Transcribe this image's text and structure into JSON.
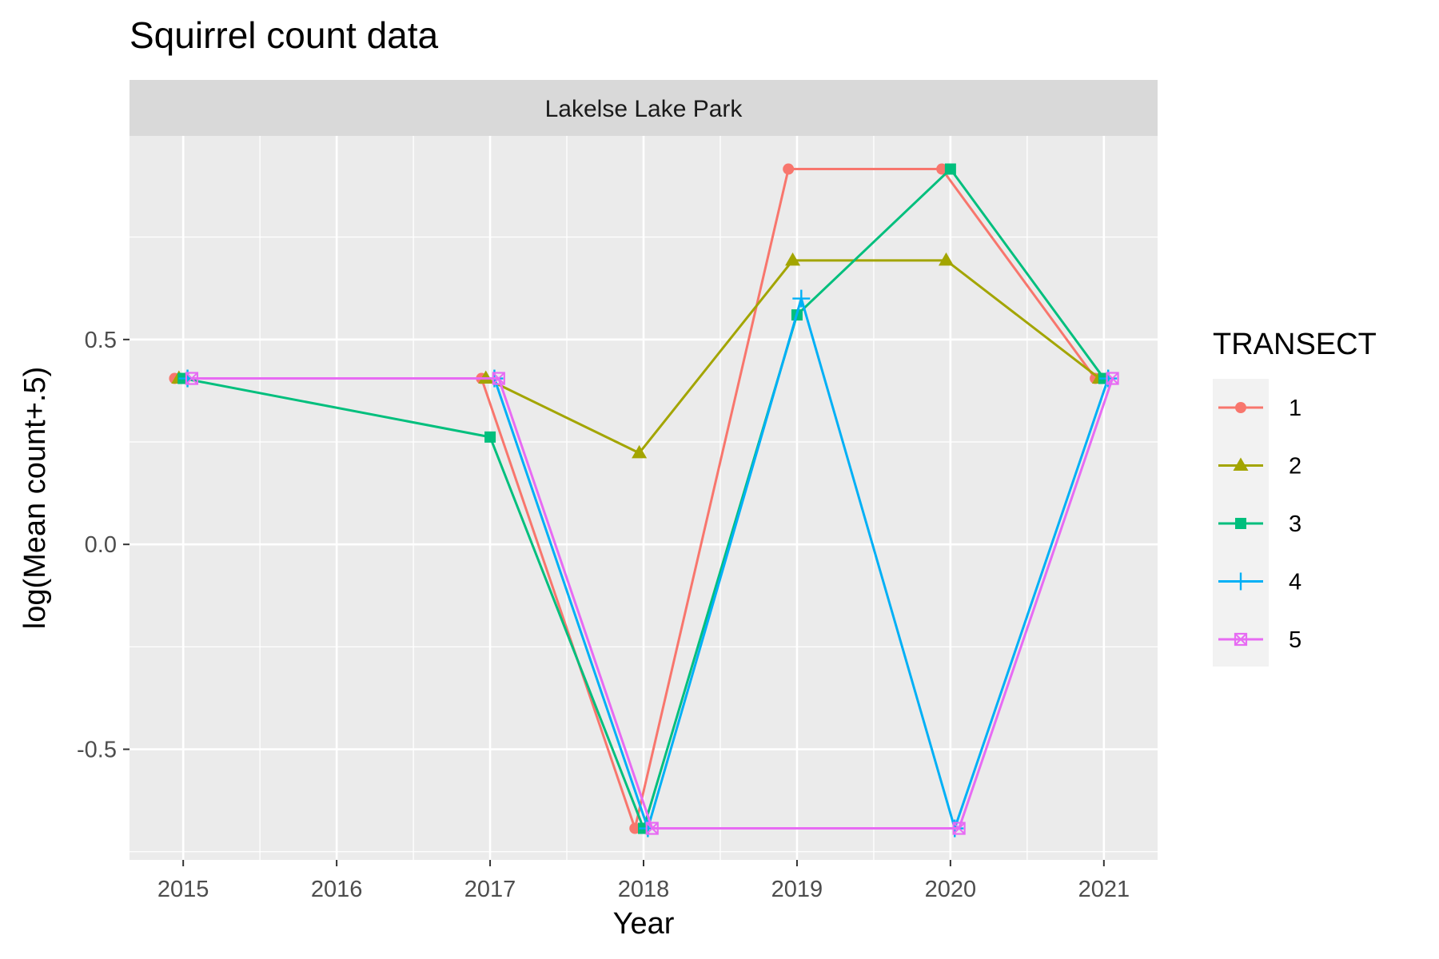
{
  "chart_data": {
    "type": "line",
    "title": "Squirrel count data",
    "facet_label": "Lakelse Lake Park",
    "xlabel": "Year",
    "ylabel": "log(Mean count+.5)",
    "x_ticks": [
      2015,
      2016,
      2017,
      2018,
      2019,
      2020,
      2021
    ],
    "y_ticks": [
      -0.5,
      0.0,
      0.5
    ],
    "y_tick_labels": [
      "-0.5",
      "0.0",
      "0.5"
    ],
    "xlim": [
      2014.65,
      2021.35
    ],
    "ylim": [
      -0.77,
      0.997
    ],
    "grid": true,
    "legend": {
      "title": "TRANSECT",
      "position": "right"
    },
    "series": [
      {
        "name": "1",
        "color": "#F8766D",
        "shape": "circle",
        "x": [
          2015,
          2017,
          2018,
          2019,
          2020,
          2021
        ],
        "y": [
          0.405,
          0.405,
          -0.693,
          0.916,
          0.916,
          0.405
        ]
      },
      {
        "name": "2",
        "color": "#A3A500",
        "shape": "triangle",
        "x": [
          2015,
          2017,
          2018,
          2019,
          2020,
          2021
        ],
        "y": [
          0.405,
          0.405,
          0.223,
          0.693,
          0.693,
          0.405
        ]
      },
      {
        "name": "3",
        "color": "#00BF7D",
        "shape": "square",
        "x": [
          2015,
          2017,
          2018,
          2019,
          2020,
          2021
        ],
        "y": [
          0.405,
          0.262,
          -0.693,
          0.56,
          0.916,
          0.405
        ]
      },
      {
        "name": "4",
        "color": "#00B0F6",
        "shape": "plus",
        "x": [
          2015,
          2017,
          2018,
          2019,
          2020,
          2021
        ],
        "y": [
          0.405,
          0.405,
          -0.693,
          0.6,
          -0.693,
          0.405
        ]
      },
      {
        "name": "5",
        "color": "#E76BF3",
        "shape": "square-x",
        "x": [
          2015,
          2017,
          2018,
          2020,
          2021
        ],
        "y": [
          0.405,
          0.405,
          -0.693,
          -0.693,
          0.405
        ]
      }
    ]
  }
}
